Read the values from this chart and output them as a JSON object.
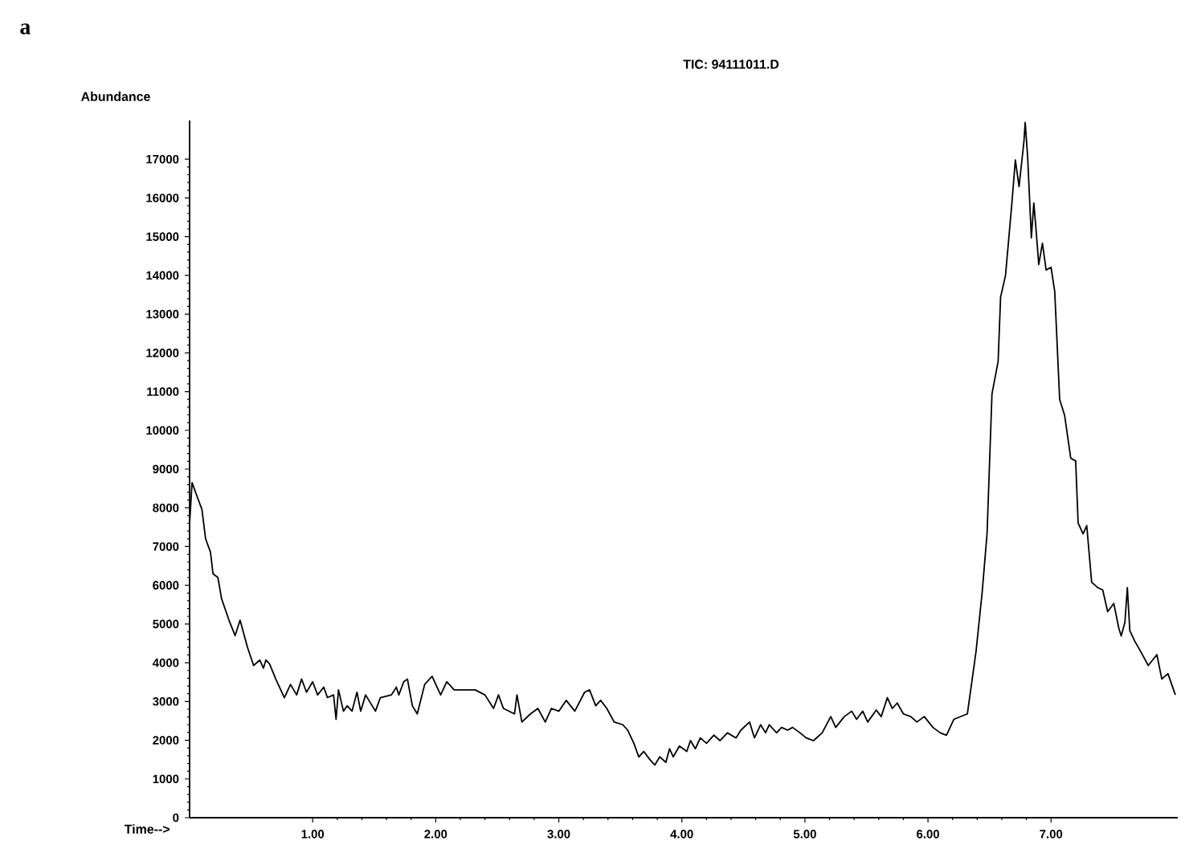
{
  "chart_data": {
    "type": "line",
    "title": "TIC: 94111011.D",
    "xlabel": "Time-->",
    "ylabel": "Abundance",
    "annotations": [
      "a"
    ],
    "xlim": [
      0,
      8.03
    ],
    "ylim": [
      0,
      18000
    ],
    "xticks": [
      {
        "value": 1,
        "label": "1.00"
      },
      {
        "value": 2,
        "label": "2.00"
      },
      {
        "value": 3,
        "label": "3.00"
      },
      {
        "value": 4,
        "label": "4.00"
      },
      {
        "value": 5,
        "label": "5.00"
      },
      {
        "value": 6,
        "label": "6.00"
      },
      {
        "value": 7,
        "label": "7.00"
      }
    ],
    "yticks": [
      0,
      1000,
      2000,
      3000,
      4000,
      5000,
      6000,
      7000,
      8000,
      9000,
      10000,
      11000,
      12000,
      13000,
      14000,
      15000,
      16000,
      17000
    ],
    "grid": false,
    "series": [
      {
        "color": "#000000",
        "x": [
          0,
          0.02,
          0.06,
          0.1,
          0.13,
          0.17,
          0.19,
          0.23,
          0.26,
          0.32,
          0.37,
          0.41,
          0.47,
          0.52,
          0.57,
          0.6,
          0.62,
          0.65,
          0.7,
          0.77,
          0.82,
          0.87,
          0.91,
          0.95,
          1.0,
          1.04,
          1.09,
          1.12,
          1.17,
          1.19,
          1.21,
          1.25,
          1.28,
          1.32,
          1.36,
          1.39,
          1.43,
          1.51,
          1.55,
          1.64,
          1.68,
          1.7,
          1.74,
          1.77,
          1.81,
          1.85,
          1.91,
          1.97,
          2.04,
          2.09,
          2.15,
          2.23,
          2.32,
          2.4,
          2.47,
          2.51,
          2.55,
          2.64,
          2.66,
          2.7,
          2.77,
          2.83,
          2.89,
          2.94,
          3.0,
          3.06,
          3.13,
          3.21,
          3.25,
          3.3,
          3.34,
          3.39,
          3.45,
          3.52,
          3.56,
          3.61,
          3.65,
          3.69,
          3.74,
          3.78,
          3.82,
          3.87,
          3.9,
          3.93,
          3.98,
          4.04,
          4.07,
          4.11,
          4.15,
          4.2,
          4.26,
          4.31,
          4.37,
          4.44,
          4.48,
          4.55,
          4.59,
          4.64,
          4.68,
          4.71,
          4.77,
          4.81,
          4.86,
          4.9,
          4.96,
          5.01,
          5.07,
          5.14,
          5.21,
          5.25,
          5.32,
          5.38,
          5.42,
          5.47,
          5.51,
          5.58,
          5.62,
          5.67,
          5.71,
          5.75,
          5.8,
          5.86,
          5.91,
          5.97,
          6.04,
          6.1,
          6.15,
          6.21,
          6.32,
          6.39,
          6.44,
          6.48,
          6.52,
          6.57,
          6.59,
          6.63,
          6.68,
          6.71,
          6.74,
          6.78,
          6.79,
          6.81,
          6.84,
          6.86,
          6.88,
          6.9,
          6.93,
          6.96,
          7.0,
          7.03,
          7.05,
          7.07,
          7.11,
          7.16,
          7.2,
          7.22,
          7.26,
          7.29,
          7.33,
          7.38,
          7.42,
          7.46,
          7.51,
          7.55,
          7.57,
          7.6,
          7.62,
          7.64,
          7.68,
          7.73,
          7.79,
          7.86,
          7.9,
          7.95,
          8.01
        ],
        "values": [
          7600,
          8650,
          8300,
          7960,
          7200,
          6850,
          6300,
          6200,
          5650,
          5100,
          4700,
          5100,
          4400,
          3930,
          4070,
          3860,
          4070,
          3970,
          3580,
          3100,
          3440,
          3170,
          3580,
          3240,
          3510,
          3170,
          3370,
          3100,
          3170,
          2540,
          3300,
          2750,
          2890,
          2750,
          3240,
          2750,
          3170,
          2750,
          3100,
          3170,
          3370,
          3170,
          3510,
          3580,
          2890,
          2680,
          3440,
          3650,
          3170,
          3510,
          3300,
          3300,
          3300,
          3170,
          2820,
          3170,
          2820,
          2680,
          3170,
          2470,
          2680,
          2820,
          2470,
          2820,
          2750,
          3030,
          2750,
          3240,
          3300,
          2890,
          3030,
          2820,
          2470,
          2400,
          2260,
          1920,
          1570,
          1710,
          1500,
          1360,
          1570,
          1430,
          1780,
          1570,
          1850,
          1710,
          1990,
          1780,
          2060,
          1920,
          2130,
          1990,
          2190,
          2060,
          2260,
          2470,
          2060,
          2400,
          2190,
          2400,
          2190,
          2330,
          2260,
          2330,
          2190,
          2060,
          1990,
          2190,
          2610,
          2330,
          2610,
          2750,
          2540,
          2750,
          2470,
          2780,
          2610,
          3100,
          2820,
          2960,
          2680,
          2610,
          2470,
          2610,
          2330,
          2190,
          2130,
          2540,
          2680,
          4280,
          5810,
          7330,
          10940,
          11780,
          13440,
          14000,
          15800,
          16980,
          16290,
          17470,
          17950,
          17050,
          14970,
          15870,
          15110,
          14280,
          14830,
          14140,
          14210,
          13580,
          12190,
          10800,
          10390,
          9280,
          9210,
          7610,
          7330,
          7540,
          6080,
          5940,
          5880,
          5320,
          5530,
          4900,
          4690,
          5040,
          5940,
          4830,
          4560,
          4280,
          3930,
          4210,
          3580,
          3720,
          3170
        ]
      }
    ]
  }
}
